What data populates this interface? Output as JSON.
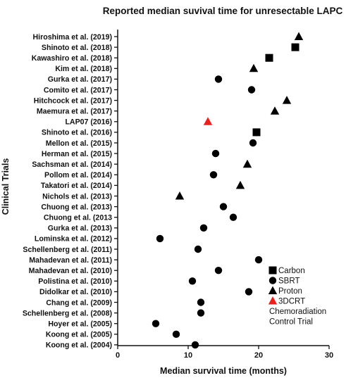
{
  "chart_data": {
    "type": "scatter",
    "title": "Reported median suvival time for unresectable LAPC",
    "xlabel": "Median survival time (months)",
    "ylabel": "Clinical Trials",
    "xlim": [
      0,
      30
    ],
    "xticks": [
      "0",
      "10",
      "20",
      "30"
    ],
    "grid": false,
    "legend_position": "bottom-right",
    "categories": [
      "Hiroshima et al. (2019)",
      "Shinoto et al. (2018)",
      "Kawashiro et al. (2018)",
      "Kim et al. (2018)",
      "Gurka et al. (2017)",
      "Comito et al. (2017)",
      "Hitchcock et al. (2017)",
      "Maemura et al. (2017)",
      "LAP07 (2016)",
      "Shinoto et al. (2016)",
      "Mellon et al. (2015)",
      "Herman et al. (2015)",
      "Sachsman et al. (2014)",
      "Pollom et al. (2014)",
      "Takatori et al. (2014)",
      "Nichols et al. (2013)",
      "Chuong et al. (2013)",
      "Chuong et al. (2013",
      "Gurka et al. (2013)",
      "Lominska et al. (2012)",
      "Schellenberg et al. (2011)",
      "Mahadevan et al. (2011)",
      "Mahadevan et al. (2010)",
      "Polistina et al. (2010)",
      "Didolkar et al. (2010)",
      "Chang et al. (2009)",
      "Schellenberg et al. (2008)",
      "Hoyer et al. (2005)",
      "Koong et al. (2005)",
      "Koong et al. (2004)"
    ],
    "values": [
      25.7,
      25.2,
      21.5,
      19.3,
      14.3,
      19.0,
      24.0,
      22.3,
      12.8,
      19.7,
      19.2,
      13.9,
      18.4,
      13.6,
      17.4,
      8.8,
      15.0,
      16.4,
      12.2,
      6.0,
      11.4,
      20.0,
      14.3,
      10.6,
      18.6,
      11.8,
      11.8,
      5.4,
      8.3,
      11.0
    ],
    "modality": [
      "Proton",
      "Carbon",
      "Carbon",
      "Proton",
      "SBRT",
      "SBRT",
      "Proton",
      "Proton",
      "3DCRT",
      "Carbon",
      "SBRT",
      "SBRT",
      "Proton",
      "SBRT",
      "Proton",
      "Proton",
      "SBRT",
      "SBRT",
      "SBRT",
      "SBRT",
      "SBRT",
      "SBRT",
      "SBRT",
      "SBRT",
      "SBRT",
      "SBRT",
      "SBRT",
      "SBRT",
      "SBRT",
      "SBRT"
    ],
    "legend": [
      {
        "key": "Carbon",
        "label": "Carbon",
        "shape": "square",
        "color": "#000000"
      },
      {
        "key": "SBRT",
        "label": "SBRT",
        "shape": "circle",
        "color": "#000000"
      },
      {
        "key": "Proton",
        "label": "Proton",
        "shape": "triangle",
        "color": "#000000"
      },
      {
        "key": "3DCRT",
        "label": "3DCRT",
        "shape": "triangle",
        "color": "#e8231f"
      }
    ],
    "legend_note": [
      "Chemoradiation",
      "Control Trial"
    ]
  }
}
